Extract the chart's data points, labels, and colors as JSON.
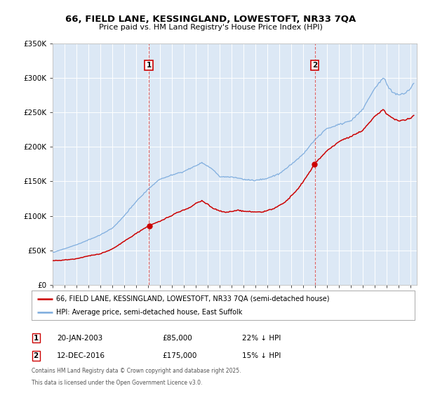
{
  "title1": "66, FIELD LANE, KESSINGLAND, LOWESTOFT, NR33 7QA",
  "title2": "Price paid vs. HM Land Registry's House Price Index (HPI)",
  "red_color": "#cc0000",
  "blue_color": "#7aaadd",
  "sale1_year": 2003.055,
  "sale1_price": 85000,
  "sale1_label": "20-JAN-2003",
  "sale1_hpi_label": "22% ↓ HPI",
  "sale2_year": 2016.95,
  "sale2_price": 175000,
  "sale2_label": "12-DEC-2016",
  "sale2_hpi_label": "15% ↓ HPI",
  "legend1": "66, FIELD LANE, KESSINGLAND, LOWESTOFT, NR33 7QA (semi-detached house)",
  "legend2": "HPI: Average price, semi-detached house, East Suffolk",
  "footnote1": "Contains HM Land Registry data © Crown copyright and database right 2025.",
  "footnote2": "This data is licensed under the Open Government Licence v3.0.",
  "ylim": [
    0,
    350000
  ],
  "xlim_start": 1995.0,
  "xlim_end": 2025.5,
  "plot_bg": "#dce8f5",
  "fig_bg": "#ffffff"
}
